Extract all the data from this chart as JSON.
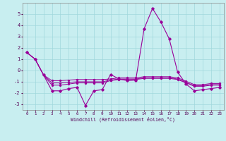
{
  "xlabel": "Windchill (Refroidissement éolien,°C)",
  "background_color": "#c8eef0",
  "grid_color": "#a0d8dc",
  "line_color": "#990099",
  "x": [
    0,
    1,
    2,
    3,
    4,
    5,
    6,
    7,
    8,
    9,
    10,
    11,
    12,
    13,
    14,
    15,
    16,
    17,
    18,
    19,
    20,
    21,
    22,
    23
  ],
  "series": [
    [
      1.6,
      1.0,
      -0.4,
      -1.8,
      -1.8,
      -1.6,
      -1.5,
      -3.1,
      -1.8,
      -1.7,
      -0.35,
      -0.75,
      -0.9,
      -0.85,
      3.7,
      5.5,
      4.3,
      2.8,
      -0.15,
      -1.2,
      -1.8,
      -1.7,
      -1.6,
      -1.5
    ],
    [
      1.6,
      1.0,
      -0.4,
      -1.3,
      -1.3,
      -1.2,
      -1.1,
      -1.1,
      -1.1,
      -1.1,
      -0.9,
      -0.8,
      -0.8,
      -0.8,
      -0.7,
      -0.7,
      -0.7,
      -0.7,
      -0.8,
      -1.1,
      -1.4,
      -1.4,
      -1.3,
      -1.3
    ],
    [
      1.6,
      1.0,
      -0.4,
      -1.1,
      -1.1,
      -1.05,
      -1.0,
      -1.0,
      -1.0,
      -1.0,
      -0.85,
      -0.75,
      -0.75,
      -0.75,
      -0.65,
      -0.65,
      -0.65,
      -0.65,
      -0.75,
      -1.05,
      -1.35,
      -1.35,
      -1.25,
      -1.25
    ],
    [
      1.6,
      1.0,
      -0.4,
      -0.9,
      -0.9,
      -0.85,
      -0.8,
      -0.8,
      -0.8,
      -0.8,
      -0.75,
      -0.65,
      -0.65,
      -0.65,
      -0.55,
      -0.55,
      -0.55,
      -0.55,
      -0.65,
      -0.95,
      -1.25,
      -1.25,
      -1.15,
      -1.15
    ]
  ],
  "ylim": [
    -3.5,
    6.0
  ],
  "yticks": [
    -3,
    -2,
    -1,
    0,
    1,
    2,
    3,
    4,
    5
  ],
  "xlim": [
    -0.5,
    23.5
  ]
}
